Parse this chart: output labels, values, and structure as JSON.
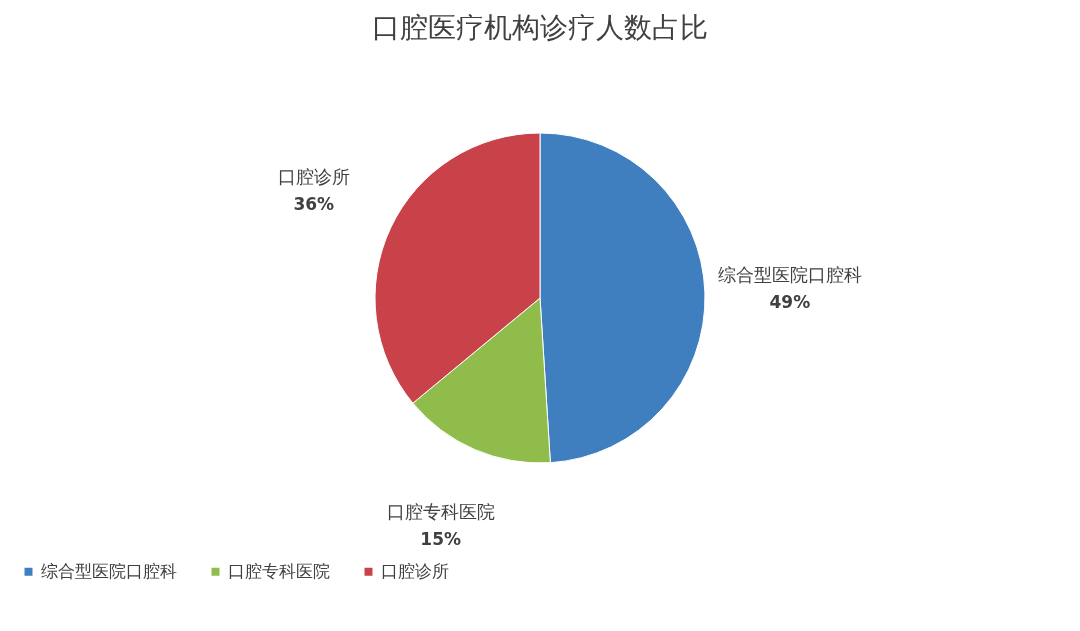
{
  "chart_data": {
    "type": "pie",
    "title": "口腔医疗机构诊疗人数占比",
    "categories": [
      "综合型医院口腔科",
      "口腔专科医院",
      "口腔诊所"
    ],
    "values": [
      49,
      15,
      36
    ],
    "value_labels": [
      "49%",
      "15%",
      "36%"
    ],
    "colors": [
      "#3f7fc0",
      "#8fbc4a",
      "#c9424a"
    ],
    "legend": "bottom"
  }
}
